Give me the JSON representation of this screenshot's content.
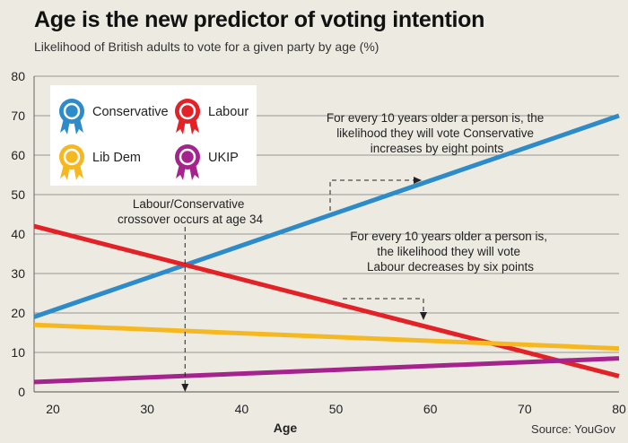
{
  "chart_data": {
    "type": "line",
    "title": "Age is the new predictor of voting intention",
    "subtitle": "Likelihood of British adults to vote for a given party by age (%)",
    "xlabel": "Age",
    "ylabel": "",
    "xlim": [
      18,
      80
    ],
    "ylim": [
      0,
      80
    ],
    "x_ticks": [
      20,
      30,
      40,
      50,
      60,
      70,
      80
    ],
    "y_ticks": [
      0,
      10,
      20,
      30,
      40,
      50,
      60,
      70,
      80
    ],
    "grid": "horizontal",
    "legend_position": "top-left",
    "series": [
      {
        "name": "Conservative",
        "color": "#2e8bc9",
        "x": [
          18,
          80
        ],
        "values": [
          19,
          70
        ]
      },
      {
        "name": "Labour",
        "color": "#e32227",
        "x": [
          18,
          80
        ],
        "values": [
          42,
          4
        ]
      },
      {
        "name": "Lib Dem",
        "color": "#f6b821",
        "x": [
          18,
          80
        ],
        "values": [
          17,
          11
        ]
      },
      {
        "name": "UKIP",
        "color": "#a5238d",
        "x": [
          18,
          80
        ],
        "values": [
          2.5,
          8.5
        ]
      }
    ],
    "annotations": {
      "crossover": [
        "Labour/Conservative",
        "crossover occurs at age 34"
      ],
      "crossover_age": 34,
      "conservative": [
        "For every 10 years older a person is, the",
        "likelihood they will vote Conservative",
        "increases by eight points"
      ],
      "labour": [
        "For every 10 years older a person is,",
        "the likelihood they will vote",
        "Labour decreases by six points"
      ]
    },
    "source": "Source: YouGov"
  }
}
